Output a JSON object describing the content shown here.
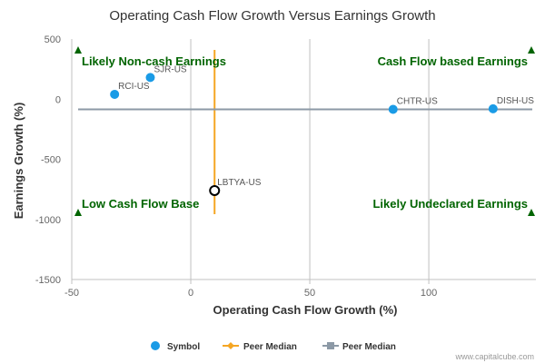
{
  "chart_data": {
    "type": "scatter",
    "title": "Operating Cash Flow Growth Versus Earnings Growth",
    "xlabel": "Operating Cash Flow Growth (%)",
    "ylabel": "Earnings Growth (%)",
    "xlim": [
      -50,
      145
    ],
    "ylim": [
      -1500,
      500
    ],
    "xticks": [
      -50,
      0,
      50,
      100
    ],
    "yticks": [
      500,
      0,
      -500,
      -1000,
      -1500
    ],
    "points": [
      {
        "label": "SJR-US",
        "x": -17,
        "y": 180
      },
      {
        "label": "RCI-US",
        "x": -32,
        "y": 40
      },
      {
        "label": "CHTR-US",
        "x": 85,
        "y": -85
      },
      {
        "label": "DISH-US",
        "x": 127,
        "y": -80
      }
    ],
    "highlight": {
      "label": "LBTYA-US",
      "x": 10,
      "y": -760
    },
    "peer_median_x": 10,
    "peer_median_y": -85,
    "quadrants": {
      "top_left": "Likely Non-cash Earnings",
      "top_right": "Cash Flow based Earnings",
      "bottom_left": "Low Cash Flow Base",
      "bottom_right": "Likely Undeclared Earnings"
    },
    "legend": [
      "Symbol",
      "Peer Median",
      "Peer Median"
    ],
    "colors": {
      "symbol": "#1a9be6",
      "peer_median_x": "#f5a623",
      "peer_median_y": "#8c99a6",
      "quadrant_text": "#006400",
      "grid": "#c0c0c0"
    }
  },
  "footer": {
    "credit": "www.capitalcube.com"
  }
}
